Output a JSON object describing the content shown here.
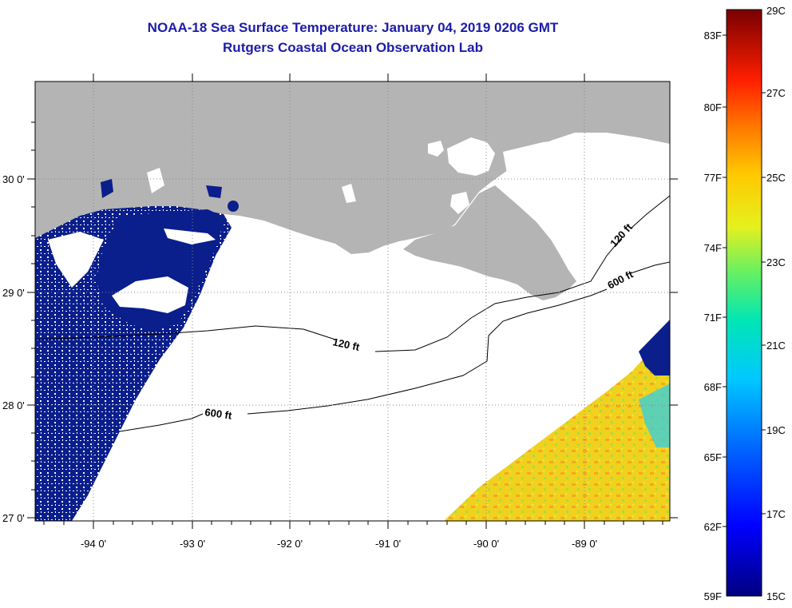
{
  "header": {
    "title": "NOAA-18 Sea Surface Temperature:  January 04, 2019 0206 GMT",
    "subtitle": "Rutgers Coastal Ocean Observation Lab"
  },
  "map": {
    "lat_labels": [
      "30 0'",
      "29 0'",
      "28 0'",
      "27 0'"
    ],
    "lon_labels": [
      "-94 0'",
      "-93 0'",
      "-92 0'",
      "-91 0'",
      "-90 0'",
      "-89 0'"
    ],
    "contours": [
      {
        "label": "120 ft",
        "depth": "120 ft"
      },
      {
        "label": "600 ft",
        "depth": "600 ft"
      },
      {
        "label": "120 ft",
        "depth": "120 ft"
      },
      {
        "label": "600 ft",
        "depth": "600 ft"
      }
    ],
    "colors": {
      "land": "#b4b4b4",
      "cloud": "#ffffff",
      "cold": "#0a1e8c",
      "warm": "#f0d21e"
    }
  },
  "colorbar": {
    "fahrenheit": [
      "83F",
      "80F",
      "77F",
      "74F",
      "71F",
      "68F",
      "65F",
      "62F",
      "59F"
    ],
    "celsius": [
      "29C",
      "27C",
      "25C",
      "23C",
      "21C",
      "19C",
      "17C",
      "15C"
    ]
  }
}
